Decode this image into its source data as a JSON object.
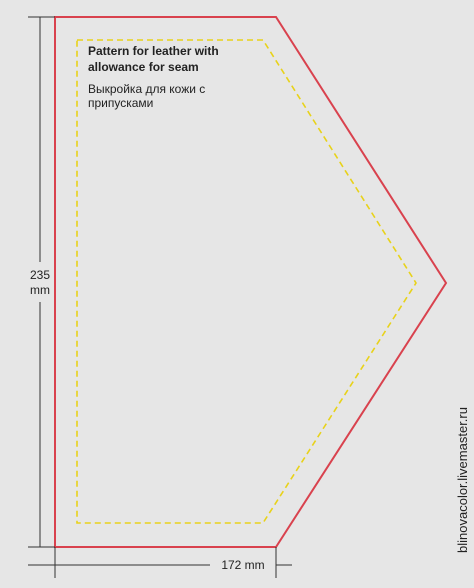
{
  "pattern": {
    "title_en": [
      "Pattern for leather with",
      "allowance for seam"
    ],
    "title_ru": [
      "Выкройка для кожи с",
      "припусками"
    ]
  },
  "dimensions": {
    "height": [
      "235",
      "mm"
    ],
    "width": "172 mm"
  },
  "watermark": "blinovacolor.livemaster.ru"
}
